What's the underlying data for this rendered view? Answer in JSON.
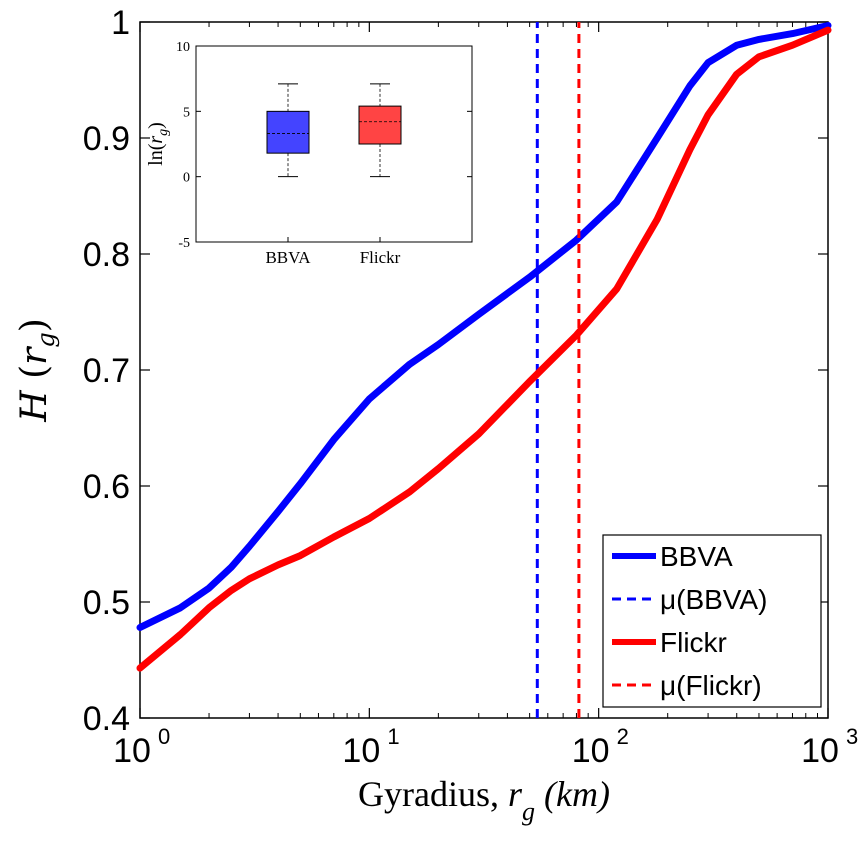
{
  "chart_data": [
    {
      "type": "line",
      "title": "",
      "xlabel_main": "Gyradius, ",
      "xlabel_var": "r",
      "xlabel_sub": "g",
      "xlabel_unit": " (km)",
      "ylabel_main": "H",
      "ylabel_var": "r",
      "ylabel_sub": "g",
      "xscale": "log",
      "xlim": [
        1,
        1000
      ],
      "ylim": [
        0.4,
        1
      ],
      "xticks": [
        {
          "base": "10",
          "exp": "0"
        },
        {
          "base": "10",
          "exp": "1"
        },
        {
          "base": "10",
          "exp": "2"
        },
        {
          "base": "10",
          "exp": "3"
        }
      ],
      "yticks": [
        "0.4",
        "0.5",
        "0.6",
        "0.7",
        "0.8",
        "0.9",
        "1"
      ],
      "grid": false,
      "legend_position": "bottom-right",
      "series": [
        {
          "name": "BBVA",
          "style": "solid",
          "color": "#0000ff",
          "x": [
            1,
            1.5,
            2,
            2.5,
            3,
            4,
            5,
            7,
            10,
            15,
            20,
            30,
            50,
            80,
            120,
            180,
            250,
            300,
            400,
            500,
            700,
            1000
          ],
          "y": [
            0.478,
            0.495,
            0.512,
            0.53,
            0.548,
            0.578,
            0.602,
            0.64,
            0.675,
            0.705,
            0.722,
            0.748,
            0.78,
            0.812,
            0.845,
            0.9,
            0.945,
            0.965,
            0.98,
            0.985,
            0.99,
            0.997
          ]
        },
        {
          "name": "μ(BBVA)",
          "style": "dashed",
          "color": "#0000ff",
          "x": [
            54,
            54
          ],
          "y": [
            0.4,
            1
          ]
        },
        {
          "name": "Flickr",
          "style": "solid",
          "color": "#ff0000",
          "x": [
            1,
            1.5,
            2,
            2.5,
            3,
            4,
            5,
            7,
            10,
            15,
            20,
            30,
            50,
            80,
            120,
            180,
            250,
            300,
            400,
            500,
            700,
            1000
          ],
          "y": [
            0.443,
            0.472,
            0.495,
            0.51,
            0.52,
            0.532,
            0.54,
            0.556,
            0.572,
            0.595,
            0.615,
            0.645,
            0.69,
            0.73,
            0.77,
            0.83,
            0.89,
            0.92,
            0.955,
            0.97,
            0.98,
            0.993
          ]
        },
        {
          "name": "μ(Flickr)",
          "style": "dashed",
          "color": "#ff0000",
          "x": [
            82,
            82
          ],
          "y": [
            0.4,
            1
          ]
        }
      ]
    },
    {
      "type": "box",
      "title": "",
      "ylabel_main": "ln(",
      "ylabel_var": "r",
      "ylabel_sub": "g",
      "ylabel_close": ")",
      "ylim": [
        -5,
        10
      ],
      "yticks": [
        "-5",
        "0",
        "5",
        "10"
      ],
      "categories": [
        "BBVA",
        "Flickr"
      ],
      "boxes": [
        {
          "name": "BBVA",
          "color": "#4444ff",
          "min": 0,
          "q1": 1.8,
          "median": 3.3,
          "q3": 5,
          "max": 7.1
        },
        {
          "name": "Flickr",
          "color": "#ff4444",
          "min": 0,
          "q1": 2.5,
          "median": 4.2,
          "q3": 5.4,
          "max": 7.1
        }
      ]
    }
  ]
}
